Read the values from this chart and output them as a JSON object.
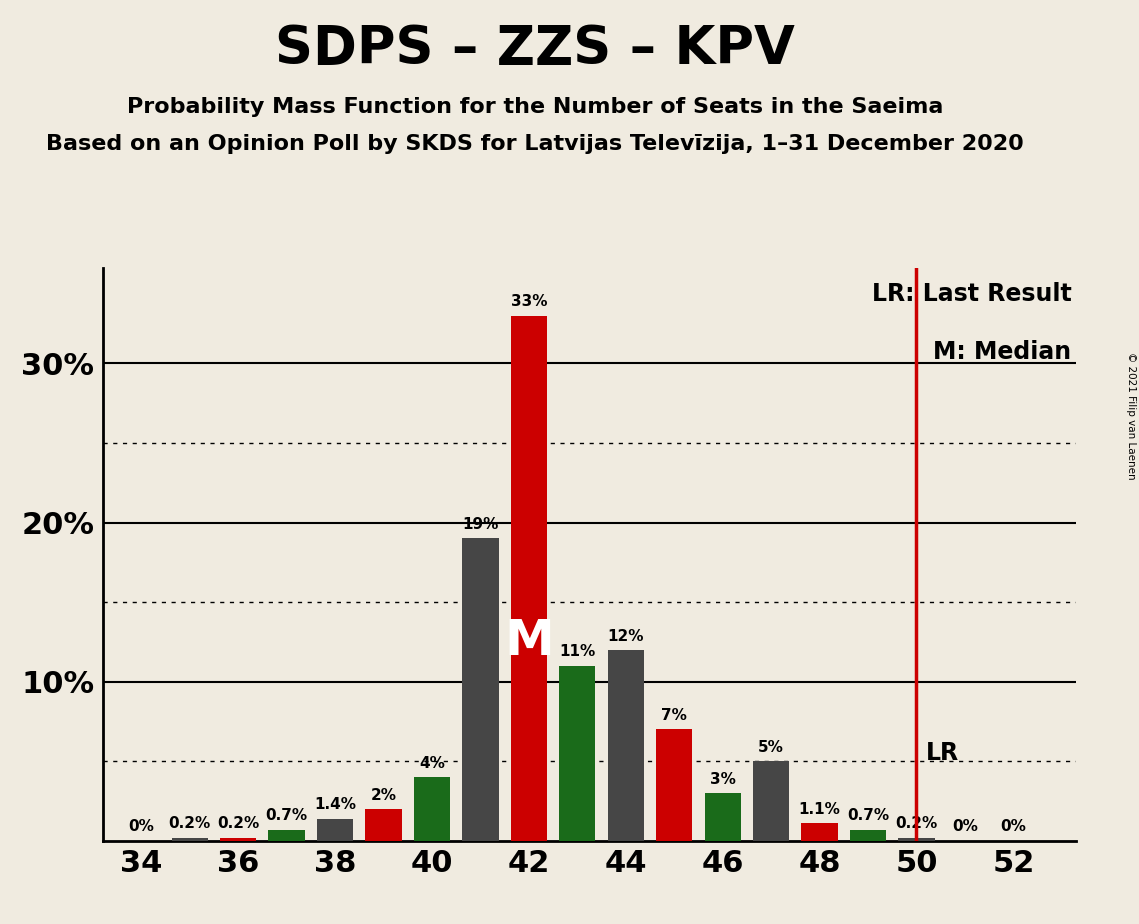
{
  "title": "SDPS – ZZS – KPV",
  "subtitle1": "Probability Mass Function for the Number of Seats in the Saeima",
  "subtitle2": "Based on an Opinion Poll by SKDS for Latvijas Televīzija, 1–31 December 2020",
  "copyright": "© 2021 Filip van Laenen",
  "seats": [
    34,
    35,
    36,
    37,
    38,
    39,
    40,
    41,
    42,
    43,
    44,
    45,
    46,
    47,
    48,
    49,
    50,
    51,
    52
  ],
  "values": [
    0.0,
    0.2,
    0.2,
    0.7,
    1.4,
    2.0,
    4.0,
    19.0,
    33.0,
    11.0,
    12.0,
    7.0,
    3.0,
    5.0,
    1.1,
    0.7,
    0.2,
    0.0,
    0.0
  ],
  "colors": [
    "#464646",
    "#464646",
    "#cc0000",
    "#1a6b1a",
    "#464646",
    "#cc0000",
    "#1a6b1a",
    "#464646",
    "#cc0000",
    "#1a6b1a",
    "#464646",
    "#cc0000",
    "#1a6b1a",
    "#464646",
    "#cc0000",
    "#1a6b1a",
    "#464646",
    "#464646",
    "#464646"
  ],
  "labels": [
    "0%",
    "0.2%",
    "0.2%",
    "0.7%",
    "1.4%",
    "2%",
    "4%",
    "19%",
    "33%",
    "11%",
    "12%",
    "7%",
    "3%",
    "5%",
    "1.1%",
    "0.7%",
    "0.2%",
    "0%",
    "0%"
  ],
  "median_seat": 42,
  "lr_seat": 50,
  "ylim": [
    0,
    36
  ],
  "major_yticks": [
    10,
    20,
    30
  ],
  "major_ytick_labels": [
    "10%",
    "20%",
    "30%"
  ],
  "dotted_yticks": [
    5,
    15,
    25
  ],
  "background_color": "#f0ebe0",
  "bar_width": 0.75,
  "title_fontsize": 38,
  "subtitle_fontsize": 16,
  "ytick_fontsize": 22,
  "xtick_fontsize": 22,
  "label_fontsize": 11,
  "legend_fontsize": 17
}
